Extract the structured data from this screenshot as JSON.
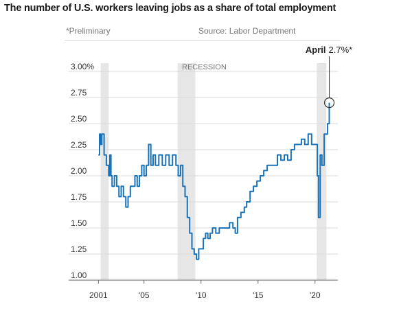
{
  "chart_data": {
    "type": "line",
    "title": "The number of U.S. workers leaving jobs as a share of total employment",
    "note": "*Preliminary",
    "source": "Source: Labor Department",
    "annotation": {
      "label": "April",
      "value": "2.7%*",
      "x": 2021.25,
      "y": 2.7
    },
    "recession_label": "RECESSION",
    "recessions": [
      [
        2001.2,
        2001.9
      ],
      [
        2007.95,
        2009.5
      ],
      [
        2020.15,
        2021.0
      ]
    ],
    "x_ticks": [
      {
        "value": 2001,
        "label": "2001"
      },
      {
        "value": 2005,
        "label": "'05"
      },
      {
        "value": 2010,
        "label": "'10"
      },
      {
        "value": 2015,
        "label": "'15"
      },
      {
        "value": 2020,
        "label": "'20"
      }
    ],
    "y_ticks": [
      {
        "value": 3.0,
        "label": "3.00%"
      },
      {
        "value": 2.75,
        "label": "2.75"
      },
      {
        "value": 2.5,
        "label": "2.50"
      },
      {
        "value": 2.25,
        "label": "2.25"
      },
      {
        "value": 2.0,
        "label": "2.00"
      },
      {
        "value": 1.75,
        "label": "1.75"
      },
      {
        "value": 1.5,
        "label": "1.50"
      },
      {
        "value": 1.25,
        "label": "1.25"
      },
      {
        "value": 1.0,
        "label": "1.00"
      }
    ],
    "xlim": [
      2000.8,
      2022.0
    ],
    "ylim": [
      1.0,
      3.0
    ],
    "grid": "horizontal",
    "series": [
      {
        "values": [
          [
            2001.0,
            2.2
          ],
          [
            2001.1,
            2.4
          ],
          [
            2001.2,
            2.3
          ],
          [
            2001.3,
            2.4
          ],
          [
            2001.5,
            2.2
          ],
          [
            2001.7,
            2.1
          ],
          [
            2001.9,
            2.0
          ],
          [
            2002.0,
            2.2
          ],
          [
            2002.1,
            2.0
          ],
          [
            2002.2,
            1.9
          ],
          [
            2002.4,
            2.0
          ],
          [
            2002.6,
            1.9
          ],
          [
            2002.8,
            1.8
          ],
          [
            2003.0,
            1.9
          ],
          [
            2003.2,
            1.8
          ],
          [
            2003.4,
            1.7
          ],
          [
            2003.6,
            1.8
          ],
          [
            2003.8,
            1.9
          ],
          [
            2004.0,
            1.9
          ],
          [
            2004.2,
            2.0
          ],
          [
            2004.4,
            1.9
          ],
          [
            2004.6,
            2.0
          ],
          [
            2004.8,
            2.1
          ],
          [
            2005.0,
            2.0
          ],
          [
            2005.2,
            2.1
          ],
          [
            2005.4,
            2.3
          ],
          [
            2005.6,
            2.1
          ],
          [
            2005.8,
            2.2
          ],
          [
            2006.0,
            2.1
          ],
          [
            2006.3,
            2.2
          ],
          [
            2006.6,
            2.1
          ],
          [
            2006.9,
            2.2
          ],
          [
            2007.2,
            2.1
          ],
          [
            2007.5,
            2.2
          ],
          [
            2007.8,
            2.1
          ],
          [
            2008.0,
            2.0
          ],
          [
            2008.2,
            2.1
          ],
          [
            2008.4,
            1.9
          ],
          [
            2008.6,
            1.8
          ],
          [
            2008.8,
            1.6
          ],
          [
            2009.0,
            1.45
          ],
          [
            2009.2,
            1.3
          ],
          [
            2009.4,
            1.25
          ],
          [
            2009.6,
            1.2
          ],
          [
            2009.8,
            1.3
          ],
          [
            2010.0,
            1.3
          ],
          [
            2010.2,
            1.4
          ],
          [
            2010.4,
            1.45
          ],
          [
            2010.6,
            1.4
          ],
          [
            2010.8,
            1.45
          ],
          [
            2011.0,
            1.5
          ],
          [
            2011.3,
            1.45
          ],
          [
            2011.6,
            1.5
          ],
          [
            2011.9,
            1.5
          ],
          [
            2012.2,
            1.5
          ],
          [
            2012.5,
            1.55
          ],
          [
            2012.8,
            1.5
          ],
          [
            2013.0,
            1.45
          ],
          [
            2013.2,
            1.6
          ],
          [
            2013.5,
            1.65
          ],
          [
            2013.8,
            1.7
          ],
          [
            2014.0,
            1.75
          ],
          [
            2014.3,
            1.85
          ],
          [
            2014.6,
            1.9
          ],
          [
            2014.9,
            1.95
          ],
          [
            2015.2,
            2.0
          ],
          [
            2015.5,
            2.05
          ],
          [
            2015.8,
            2.1
          ],
          [
            2016.1,
            2.1
          ],
          [
            2016.4,
            2.1
          ],
          [
            2016.7,
            2.2
          ],
          [
            2017.0,
            2.15
          ],
          [
            2017.3,
            2.2
          ],
          [
            2017.6,
            2.15
          ],
          [
            2017.9,
            2.25
          ],
          [
            2018.2,
            2.3
          ],
          [
            2018.5,
            2.3
          ],
          [
            2018.8,
            2.35
          ],
          [
            2019.1,
            2.3
          ],
          [
            2019.4,
            2.4
          ],
          [
            2019.7,
            2.3
          ],
          [
            2020.0,
            2.3
          ],
          [
            2020.1,
            2.3
          ],
          [
            2020.2,
            2.0
          ],
          [
            2020.3,
            1.6
          ],
          [
            2020.45,
            2.2
          ],
          [
            2020.6,
            2.1
          ],
          [
            2020.8,
            2.4
          ],
          [
            2021.0,
            2.4
          ],
          [
            2021.1,
            2.5
          ],
          [
            2021.25,
            2.7
          ]
        ]
      }
    ]
  }
}
